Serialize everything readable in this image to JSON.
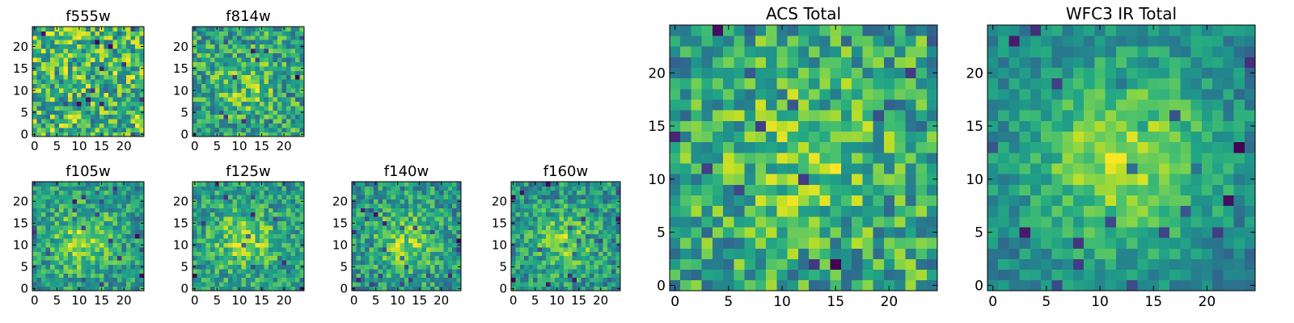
{
  "chart_data": [
    {
      "type": "heatmap",
      "title": "f555w",
      "xticks": [
        "0",
        "5",
        "10",
        "15",
        "20"
      ],
      "yticks": [
        "0",
        "5",
        "10",
        "15",
        "20"
      ],
      "xlim": [
        -0.5,
        24.5
      ],
      "ylim": [
        -0.5,
        24.5
      ],
      "grid_size": [
        25,
        25
      ],
      "colormap": "viridis",
      "pattern": "noise",
      "seed": 11
    },
    {
      "type": "heatmap",
      "title": "f814w",
      "xticks": [
        "0",
        "5",
        "10",
        "15",
        "20"
      ],
      "yticks": [
        "0",
        "5",
        "10",
        "15",
        "20"
      ],
      "xlim": [
        -0.5,
        24.5
      ],
      "ylim": [
        -0.5,
        24.5
      ],
      "grid_size": [
        25,
        25
      ],
      "colormap": "viridis",
      "pattern": "faint-source",
      "source_center": [
        12,
        11
      ],
      "seed": 23
    },
    {
      "type": "heatmap",
      "title": "f105w",
      "xticks": [
        "0",
        "5",
        "10",
        "15",
        "20"
      ],
      "yticks": [
        "0",
        "5",
        "10",
        "15",
        "20"
      ],
      "xlim": [
        -0.5,
        24.5
      ],
      "ylim": [
        -0.5,
        24.5
      ],
      "grid_size": [
        25,
        25
      ],
      "colormap": "viridis",
      "pattern": "source",
      "source_center": [
        11,
        11
      ],
      "seed": 37
    },
    {
      "type": "heatmap",
      "title": "f125w",
      "xticks": [
        "0",
        "5",
        "10",
        "15",
        "20"
      ],
      "yticks": [
        "0",
        "5",
        "10",
        "15",
        "20"
      ],
      "xlim": [
        -0.5,
        24.5
      ],
      "ylim": [
        -0.5,
        24.5
      ],
      "grid_size": [
        25,
        25
      ],
      "colormap": "viridis",
      "pattern": "source",
      "source_center": [
        11,
        11
      ],
      "seed": 41
    },
    {
      "type": "heatmap",
      "title": "f140w",
      "xticks": [
        "0",
        "5",
        "10",
        "15",
        "20"
      ],
      "yticks": [
        "0",
        "5",
        "10",
        "15",
        "20"
      ],
      "xlim": [
        -0.5,
        24.5
      ],
      "ylim": [
        -0.5,
        24.5
      ],
      "grid_size": [
        25,
        25
      ],
      "colormap": "viridis",
      "pattern": "source",
      "source_center": [
        12,
        11
      ],
      "seed": 53
    },
    {
      "type": "heatmap",
      "title": "f160w",
      "xticks": [
        "0",
        "5",
        "10",
        "15",
        "20"
      ],
      "yticks": [
        "0",
        "5",
        "10",
        "15",
        "20"
      ],
      "xlim": [
        -0.5,
        24.5
      ],
      "ylim": [
        -0.5,
        24.5
      ],
      "grid_size": [
        25,
        25
      ],
      "colormap": "viridis",
      "pattern": "source",
      "source_center": [
        12,
        11
      ],
      "seed": 67
    },
    {
      "type": "heatmap",
      "title": "ACS Total",
      "xticks": [
        "0",
        "5",
        "10",
        "15",
        "20"
      ],
      "yticks": [
        "0",
        "5",
        "10",
        "15",
        "20"
      ],
      "xlim": [
        -0.5,
        24.5
      ],
      "ylim": [
        -0.5,
        24.5
      ],
      "grid_size": [
        25,
        25
      ],
      "colormap": "viridis",
      "pattern": "faint-source",
      "source_center": [
        12,
        12
      ],
      "seed": 79
    },
    {
      "type": "heatmap",
      "title": "WFC3 IR Total",
      "xticks": [
        "0",
        "5",
        "10",
        "15",
        "20"
      ],
      "yticks": [
        "0",
        "5",
        "10",
        "15",
        "20"
      ],
      "xlim": [
        -0.5,
        24.5
      ],
      "ylim": [
        -0.5,
        24.5
      ],
      "grid_size": [
        25,
        25
      ],
      "colormap": "viridis",
      "pattern": "smooth-source",
      "source_center": [
        12,
        12
      ],
      "seed": 97
    }
  ]
}
